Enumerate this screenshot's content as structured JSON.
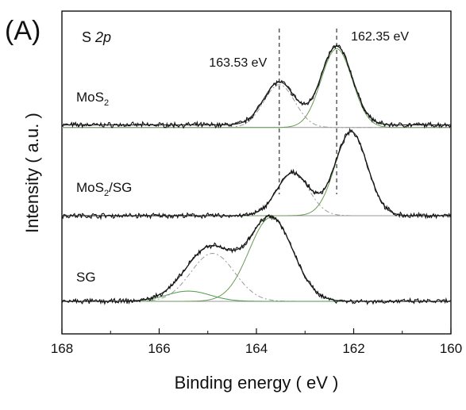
{
  "panel_label": "(A)",
  "chart_data": {
    "type": "line",
    "title": "",
    "xlabel": "Binding energy ( eV )",
    "ylabel": "Intensity ( a.u. )",
    "xlim": [
      168,
      160
    ],
    "x_reversed": true,
    "x_ticks": [
      168,
      166,
      164,
      162,
      160
    ],
    "y_ticks_shown": false,
    "inner_label_prefix": "S ",
    "inner_label_italic": "2p",
    "reference_lines": [
      {
        "x": 163.53,
        "label": "163.53 eV",
        "style": "dashed"
      },
      {
        "x": 162.35,
        "label": "162.35 eV",
        "style": "dashed"
      }
    ],
    "series": [
      {
        "label_main": "MoS",
        "label_sub": "2",
        "label_tail": "",
        "offset": 2.0,
        "baseline": 0.06,
        "sd": 0.32,
        "peaks": [
          {
            "x": 162.35,
            "h": 0.92
          },
          {
            "x": 163.53,
            "h": 0.5
          }
        ],
        "fit_colors": {
          "main": "#6a9a55",
          "second": "#9a9a9a"
        }
      },
      {
        "label_main": "MoS",
        "label_sub": "2",
        "label_tail": "/SG",
        "offset": 1.0,
        "baseline": 0.0,
        "sd": 0.33,
        "peaks": [
          {
            "x": 162.05,
            "h": 0.98
          },
          {
            "x": 163.25,
            "h": 0.5
          }
        ],
        "fit_colors": {
          "main": "#6a9a55",
          "second": "#9a9a9a"
        }
      },
      {
        "label_main": "SG",
        "label_sub": "",
        "label_tail": "",
        "offset": 0.0,
        "baseline": 0.0,
        "sd": 0.45,
        "peaks": [
          {
            "x": 163.7,
            "h": 0.98
          },
          {
            "x": 164.9,
            "h": 0.56
          },
          {
            "x": 165.4,
            "h": 0.12
          }
        ],
        "fit_colors": {
          "main": "#6a9a55",
          "second": "#9a9a9a",
          "third": "#4a9a4a"
        }
      }
    ]
  }
}
